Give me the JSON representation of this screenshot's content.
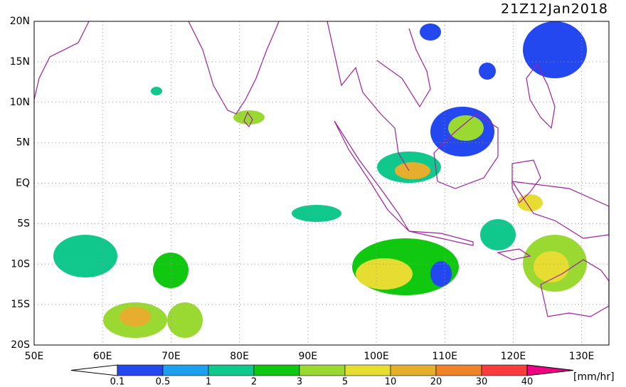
{
  "title": "21Z12Jan2018",
  "lat_labels": [
    "20N",
    "15N",
    "10N",
    "5N",
    "EQ",
    "5S",
    "10S",
    "15S",
    "20S"
  ],
  "lon_labels": [
    "50E",
    "60E",
    "70E",
    "80E",
    "90E",
    "100E",
    "110E",
    "120E",
    "130E"
  ],
  "colorbar": {
    "labels": [
      "0.1",
      "0.5",
      "1",
      "2",
      "3",
      "5",
      "10",
      "20",
      "30",
      "40"
    ],
    "colors": [
      "#ffffff",
      "#2448f0",
      "#1ea0f0",
      "#10c88c",
      "#10c810",
      "#9ad832",
      "#e6dc32",
      "#e6ae2d",
      "#f08228",
      "#fa3c3c",
      "#f00082"
    ],
    "unit": "[mm/hr]"
  }
}
